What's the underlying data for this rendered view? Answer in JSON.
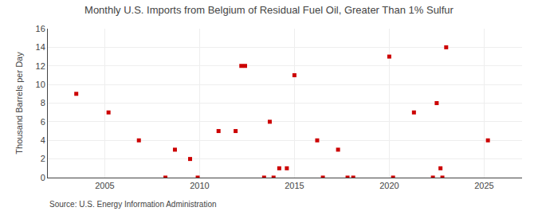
{
  "chart_data": {
    "type": "scatter",
    "title": "Monthly U.S. Imports from Belgium of Residual Fuel Oil, Greater Than 1% Sulfur",
    "ylabel": "Thousand Barrels per Day",
    "annotations": [
      "Source: U.S. Energy Information Administration"
    ],
    "color": "#cc0000",
    "marker": "square",
    "grid": true,
    "xlim": [
      2002.0,
      2027.0
    ],
    "xticks": [
      2005,
      2010,
      2015,
      2020,
      2025
    ],
    "ylim": [
      0,
      16
    ],
    "yticks": [
      0,
      2,
      4,
      6,
      8,
      10,
      12,
      14,
      16
    ],
    "x": [
      2003.5,
      2005.2,
      2006.8,
      2008.2,
      2008.7,
      2009.5,
      2009.9,
      2011.0,
      2011.9,
      2012.2,
      2012.4,
      2013.4,
      2013.7,
      2013.9,
      2014.2,
      2014.6,
      2015.0,
      2016.2,
      2016.5,
      2017.3,
      2017.8,
      2018.1,
      2020.0,
      2020.2,
      2021.3,
      2022.3,
      2022.5,
      2022.7,
      2022.8,
      2023.0,
      2025.2
    ],
    "values": [
      9,
      7,
      4,
      0,
      3,
      2,
      0,
      5,
      5,
      12,
      12,
      0,
      6,
      0,
      1,
      1,
      11,
      4,
      0,
      3,
      0,
      0,
      13,
      0,
      7,
      0,
      8,
      1,
      0,
      14,
      4
    ]
  }
}
